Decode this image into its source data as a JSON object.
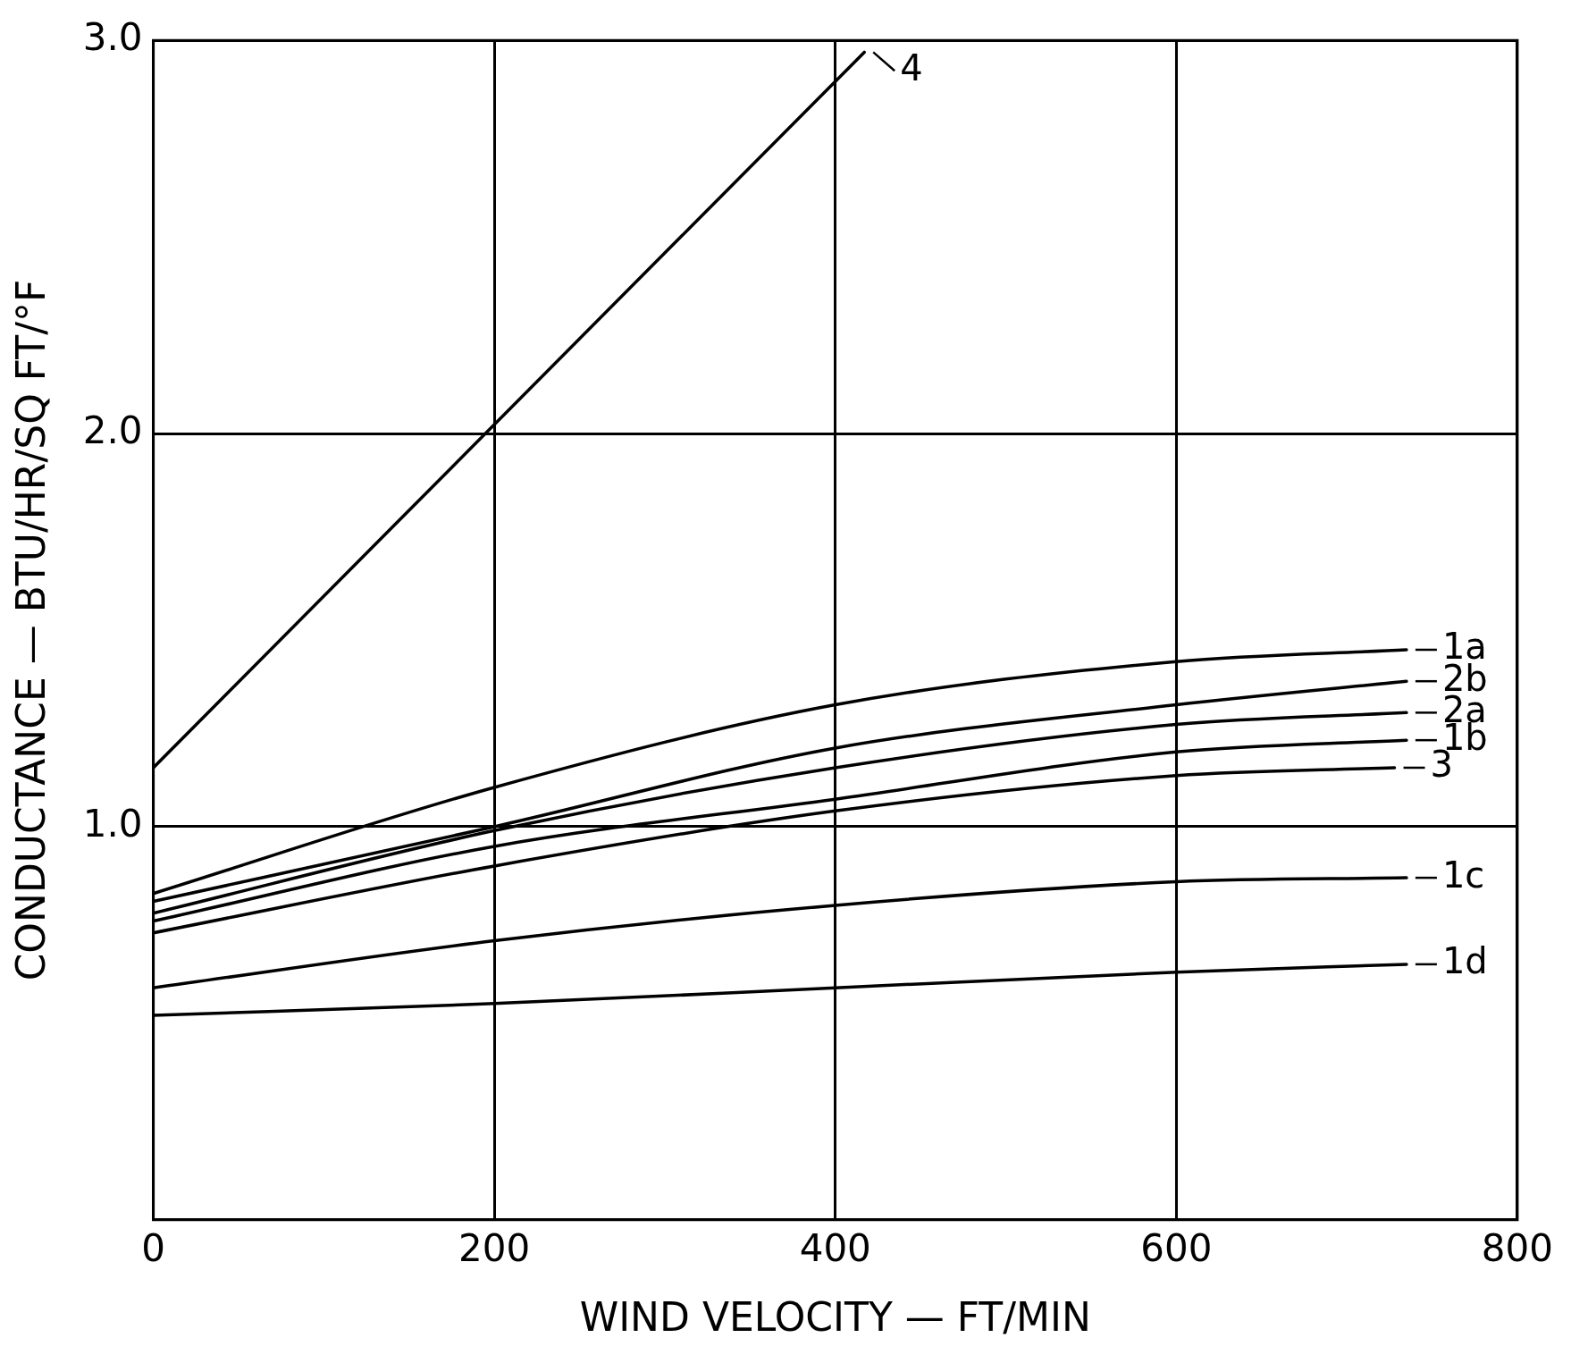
{
  "chart_data": {
    "type": "line",
    "xlabel": "WIND VELOCITY — FT/MIN",
    "ylabel": "CONDUCTANCE — BTU/HR/SQ FT/°F",
    "xlim": [
      0,
      800
    ],
    "xticks": [
      0,
      200,
      400,
      600,
      800
    ],
    "ylim": [
      0,
      3
    ],
    "yticks": [
      {
        "value": 1,
        "label": "1.0"
      },
      {
        "value": 2,
        "label": "2.0"
      },
      {
        "value": 3,
        "label": "3.0"
      }
    ],
    "grid": true,
    "legend": "right",
    "marker": "none",
    "line_style": "solid",
    "series": [
      {
        "name": "4",
        "color": "#000000",
        "x": [
          0,
          417
        ],
        "values": [
          1.15,
          2.97
        ]
      },
      {
        "name": "1a",
        "color": "#000000",
        "x": [
          0,
          200,
          400,
          600,
          735
        ],
        "values": [
          0.83,
          1.1,
          1.31,
          1.42,
          1.45
        ]
      },
      {
        "name": "2b",
        "color": "#000000",
        "x": [
          0,
          200,
          400,
          600,
          735
        ],
        "values": [
          0.81,
          1.0,
          1.2,
          1.31,
          1.37
        ]
      },
      {
        "name": "2a",
        "color": "#000000",
        "x": [
          0,
          200,
          400,
          600,
          735
        ],
        "values": [
          0.78,
          0.99,
          1.15,
          1.26,
          1.29
        ]
      },
      {
        "name": "1b",
        "color": "#000000",
        "x": [
          0,
          200,
          400,
          600,
          735
        ],
        "values": [
          0.76,
          0.95,
          1.07,
          1.19,
          1.22
        ]
      },
      {
        "name": "3",
        "color": "#000000",
        "x": [
          0,
          200,
          400,
          600,
          728
        ],
        "values": [
          0.73,
          0.9,
          1.04,
          1.13,
          1.15
        ]
      },
      {
        "name": "1c",
        "color": "#000000",
        "x": [
          0,
          200,
          400,
          600,
          735
        ],
        "values": [
          0.59,
          0.71,
          0.8,
          0.86,
          0.87
        ]
      },
      {
        "name": "1d",
        "color": "#000000",
        "x": [
          0,
          200,
          400,
          600,
          735
        ],
        "values": [
          0.52,
          0.55,
          0.59,
          0.63,
          0.65
        ]
      }
    ]
  }
}
